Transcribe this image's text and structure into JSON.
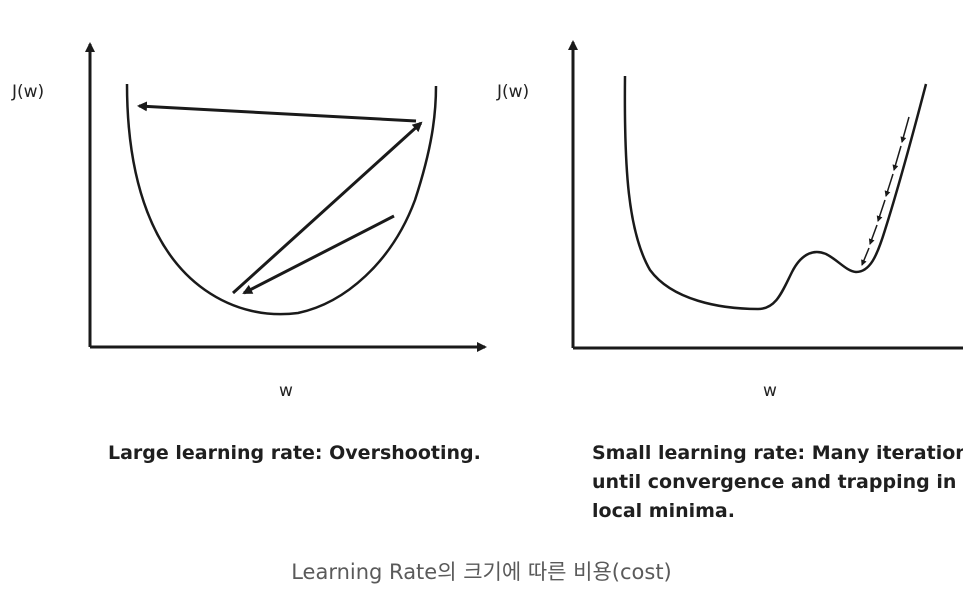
{
  "left_plot": {
    "y_label": "J(w)",
    "x_label": "w",
    "caption": "Large learning rate: Overshooting."
  },
  "right_plot": {
    "y_label": "J(w)",
    "x_label": "w",
    "caption_lines": [
      "Small learning rate: Many iterations",
      "until convergence and trapping in",
      "local minima."
    ]
  },
  "bottom_caption": "Learning Rate의 크기에 따른 비용(cost)",
  "colors": {
    "ink": "#1a1a1a",
    "caption": "#5a5a5a",
    "background": "#ffffff"
  }
}
